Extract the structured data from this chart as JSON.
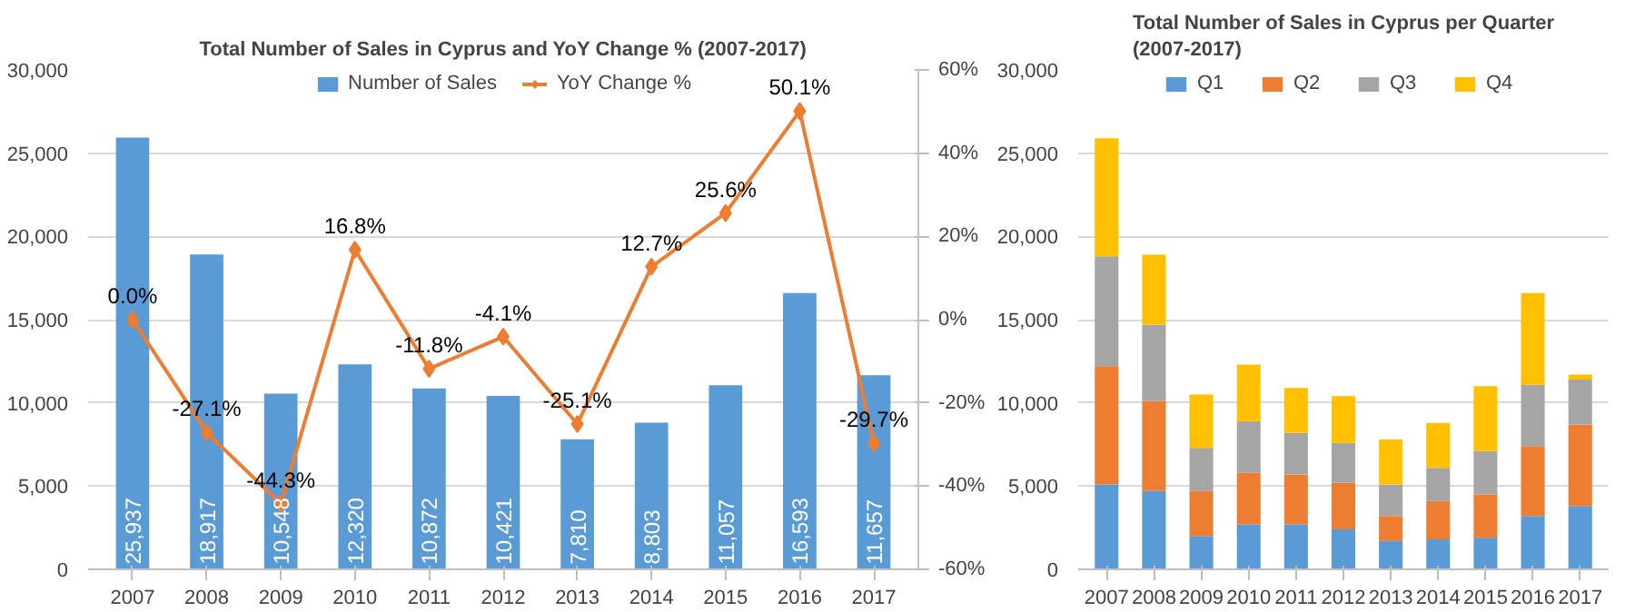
{
  "chart_data": [
    {
      "type": "bar",
      "title": "Total Number of Sales in Cyprus and YoY Change % (2007-2017)",
      "categories": [
        "2007",
        "2008",
        "2009",
        "2010",
        "2011",
        "2012",
        "2013",
        "2014",
        "2015",
        "2016",
        "2017"
      ],
      "series": [
        {
          "name": "Number of Sales",
          "type": "bar",
          "color": "#5b9bd5",
          "values": [
            25937,
            18917,
            10548,
            12320,
            10872,
            10421,
            7810,
            8803,
            11057,
            16593,
            11657
          ],
          "value_labels": [
            "25,937",
            "18,917",
            "10,548",
            "12,320",
            "10,872",
            "10,421",
            "7,810",
            "8,803",
            "11,057",
            "16,593",
            "11,657"
          ]
        },
        {
          "name": "YoY Change %",
          "type": "line",
          "axis": "y2",
          "color": "#ed7d31",
          "marker": "diamond",
          "values": [
            0.0,
            -27.1,
            -44.3,
            16.8,
            -11.8,
            -4.1,
            -25.1,
            12.7,
            25.6,
            50.1,
            -29.7
          ],
          "value_labels": [
            "0.0%",
            "-27.1%",
            "-44.3%",
            "16.8%",
            "-11.8%",
            "-4.1%",
            "-25.1%",
            "12.7%",
            "25.6%",
            "50.1%",
            "-29.7%"
          ]
        }
      ],
      "ylim": [
        0,
        30000
      ],
      "yticks": [
        0,
        {
          "value": 5000,
          "label": "5,000"
        },
        {
          "value": 10000,
          "label": "10,000"
        },
        {
          "value": 15000,
          "label": "15,000"
        },
        {
          "value": 20000,
          "label": "20,000"
        },
        {
          "value": 25000,
          "label": "25,000"
        },
        {
          "value": 30000,
          "label": "30,000"
        }
      ],
      "y2lim": [
        -60,
        60
      ],
      "y2ticks": [
        {
          "value": -60,
          "label": "-60%"
        },
        {
          "value": -40,
          "label": "-40%"
        },
        {
          "value": -20,
          "label": "-20%"
        },
        {
          "value": 0,
          "label": "0%"
        },
        {
          "value": 20,
          "label": "20%"
        },
        {
          "value": 40,
          "label": "40%"
        },
        {
          "value": 60,
          "label": "60%"
        }
      ],
      "grid": "y",
      "legend": "top"
    },
    {
      "type": "bar",
      "stacked": true,
      "title": "Total Number of Sales in Cyprus per Quarter\n(2007-2017)",
      "categories": [
        "2007",
        "2008",
        "2009",
        "2010",
        "2011",
        "2012",
        "2013",
        "2014",
        "2015",
        "2016",
        "2017"
      ],
      "series": [
        {
          "name": "Q1",
          "color": "#5b9bd5",
          "values": [
            5100,
            4700,
            2000,
            2700,
            2700,
            2400,
            1700,
            1800,
            1900,
            3200,
            3800
          ]
        },
        {
          "name": "Q2",
          "color": "#ed7d31",
          "values": [
            7100,
            5400,
            2700,
            3100,
            3000,
            2800,
            1500,
            2300,
            2600,
            4200,
            4900
          ]
        },
        {
          "name": "Q3",
          "color": "#a5a5a5",
          "values": [
            6600,
            4600,
            2600,
            3100,
            2500,
            2400,
            1900,
            2000,
            2600,
            3700,
            2700
          ]
        },
        {
          "name": "Q4",
          "color": "#ffc000",
          "values": [
            7100,
            4200,
            3200,
            3400,
            2700,
            2800,
            2700,
            2700,
            3900,
            5500,
            300
          ]
        }
      ],
      "ylim": [
        0,
        30000
      ],
      "yticks": [
        0,
        {
          "value": 5000,
          "label": "5,000"
        },
        {
          "value": 10000,
          "label": "10,000"
        },
        {
          "value": 15000,
          "label": "15,000"
        },
        {
          "value": 20000,
          "label": "20,000"
        },
        {
          "value": 25000,
          "label": "25,000"
        },
        {
          "value": 30000,
          "label": "30,000"
        }
      ],
      "grid": "y",
      "legend": "top"
    }
  ]
}
